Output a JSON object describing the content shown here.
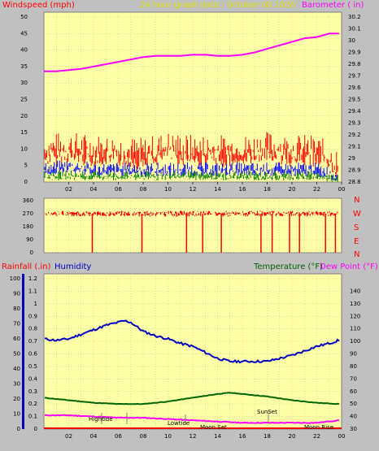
{
  "header_top": {
    "windspeed": "Windspeed (mph)",
    "title": "24 hour graph date : October 08 2020",
    "barometer": "Barometer ( in)"
  },
  "header_bottom": {
    "rainfall": "Rainfall (.in)",
    "humidity": "Humidity",
    "temperature": "Temperature (°F)",
    "dewpoint": "Dew Point (°F)"
  },
  "compass": [
    "N",
    "W",
    "S",
    "E",
    "N"
  ],
  "hour_ticks": [
    "02",
    "04",
    "06",
    "08",
    "10",
    "12",
    "14",
    "16",
    "18",
    "20",
    "22",
    "00"
  ],
  "colors": {
    "plot_bg": "#ffffa8",
    "grid": "#c0c080",
    "wind_gust": "#ff0000",
    "wind_avg": "#0000ff",
    "wind_low": "#008000",
    "barometer": "#ff00ff",
    "direction": "#ff0000",
    "humidity": "#0000c0",
    "temperature": "#006400",
    "dewpoint": "#ff00ff",
    "rain_axis": "#0000c0",
    "title": "#e0e000"
  },
  "annotations": {
    "hightide": "Hightide",
    "lowtide": "Lowtide",
    "moonset": "Moon Set",
    "sunset": "SunSet",
    "moonrise": "Moon Rise"
  },
  "chart_data": [
    {
      "type": "line",
      "title": "24 hour graph date : October 08 2020",
      "x_unit": "hour",
      "xlim": [
        0,
        24
      ],
      "y_left": {
        "label": "Windspeed (mph)",
        "lim": [
          0,
          50
        ],
        "ticks": [
          0,
          5,
          10,
          15,
          20,
          25,
          30,
          35,
          40,
          45,
          50
        ]
      },
      "y_right": {
        "label": "Barometer ( in)",
        "lim": [
          28.8,
          30.2
        ],
        "ticks": [
          "28.8",
          "28.9",
          "29",
          "29.1",
          "29.2",
          "29.3",
          "29.4",
          "29.5",
          "29.6",
          "29.7",
          "29.8",
          "29.9",
          "30",
          "30.1",
          "30.2"
        ]
      },
      "series": [
        {
          "name": "Barometer (in)",
          "axis": "right",
          "x": [
            0,
            1,
            2,
            3,
            4,
            5,
            6,
            7,
            8,
            9,
            10,
            11,
            12,
            13,
            14,
            15,
            16,
            17,
            18,
            19,
            20,
            21,
            22,
            23,
            23.8
          ],
          "y": [
            29.74,
            29.74,
            29.75,
            29.76,
            29.78,
            29.8,
            29.82,
            29.84,
            29.86,
            29.87,
            29.87,
            29.87,
            29.88,
            29.88,
            29.87,
            29.87,
            29.88,
            29.9,
            29.93,
            29.96,
            29.99,
            30.02,
            30.03,
            30.06,
            30.06
          ]
        },
        {
          "name": "Wind gust (mph)",
          "axis": "left",
          "x": [
            0,
            2,
            4,
            6,
            8,
            10,
            12,
            14,
            16,
            18,
            20,
            22,
            24
          ],
          "y": [
            10,
            11,
            10,
            10,
            9,
            11,
            10,
            10,
            10,
            11,
            10,
            10,
            5
          ]
        },
        {
          "name": "Wind average (mph)",
          "axis": "left",
          "x": [
            0,
            2,
            4,
            6,
            8,
            10,
            12,
            14,
            16,
            18,
            20,
            22,
            24
          ],
          "y": [
            4,
            5,
            4,
            4,
            4,
            4,
            4,
            4,
            4,
            4,
            4,
            4,
            2
          ]
        },
        {
          "name": "Wind low (mph)",
          "axis": "left",
          "x": [
            0,
            2,
            4,
            6,
            8,
            10,
            12,
            14,
            16,
            18,
            20,
            22,
            24
          ],
          "y": [
            2,
            2,
            2,
            2,
            2,
            2,
            2,
            2,
            2,
            2,
            2,
            2,
            1
          ]
        }
      ]
    },
    {
      "type": "scatter",
      "x_unit": "hour",
      "xlim": [
        0,
        24
      ],
      "y_left": {
        "lim": [
          0,
          360
        ],
        "ticks": [
          0,
          90,
          180,
          270,
          360
        ]
      },
      "y_right_labels": [
        "N",
        "W",
        "S",
        "E",
        "N"
      ],
      "series": [
        {
          "name": "Wind direction (degrees)",
          "typical_value": 270,
          "drops_to_zero_at": [
            3.9,
            7.9,
            11.5,
            12.8,
            14.3,
            17.5,
            18.4,
            19.8,
            20.6,
            22.7,
            23.5
          ]
        }
      ]
    },
    {
      "type": "line",
      "x_unit": "hour",
      "xlim": [
        0,
        24
      ],
      "y_left_outer": {
        "label": "Rainfall (.in)",
        "lim": [
          0,
          1.2
        ],
        "ticks": [
          "0",
          "0.1",
          "0.2",
          "0.3",
          "0.4",
          "0.5",
          "0.6",
          "0.7",
          "0.8",
          "0.9",
          "1",
          "1.1",
          "1.2"
        ]
      },
      "y_left_inner": {
        "label": "Humidity",
        "lim": [
          0,
          100
        ],
        "ticks": [
          0,
          10,
          20,
          30,
          40,
          50,
          60,
          70,
          80,
          90,
          100
        ]
      },
      "y_right": {
        "label": "Temperature (°F)",
        "lim": [
          30,
          150
        ],
        "ticks": [
          30,
          40,
          50,
          60,
          70,
          80,
          90,
          100,
          110,
          120,
          130,
          140
        ]
      },
      "series": [
        {
          "name": "Humidity",
          "axis": "humidity",
          "x": [
            0,
            1,
            2,
            3,
            4,
            5,
            6,
            6.5,
            7,
            8,
            9,
            10,
            11,
            12,
            13,
            14,
            15,
            16,
            17,
            18,
            19,
            20,
            21,
            22,
            23,
            23.8
          ],
          "y": [
            60,
            59,
            60,
            63,
            66,
            69,
            71,
            72,
            71,
            65,
            62,
            60,
            57,
            55,
            51,
            47,
            45,
            45,
            45,
            45,
            47,
            49,
            52,
            55,
            57,
            59
          ]
        },
        {
          "name": "Temperature (°F)",
          "axis": "right",
          "x": [
            0,
            2,
            4,
            6,
            8,
            10,
            12,
            14,
            15,
            16,
            18,
            20,
            22,
            23.8
          ],
          "y": [
            55,
            53,
            51,
            50,
            50,
            52,
            55,
            58,
            59,
            58,
            56,
            53,
            51,
            50
          ]
        },
        {
          "name": "Dew Point (°F)",
          "axis": "right",
          "x": [
            0,
            2,
            4,
            6,
            8,
            10,
            12,
            14,
            16,
            18,
            20,
            22,
            23.8
          ],
          "y": [
            41,
            41,
            40,
            39,
            39,
            38,
            37,
            36,
            35,
            35,
            35,
            35,
            37
          ]
        },
        {
          "name": "Rainfall (.in)",
          "axis": "rain",
          "x": [
            0,
            23.8
          ],
          "y": [
            0,
            0
          ]
        }
      ],
      "markers": [
        {
          "label": "Hightide",
          "x": 6.3
        },
        {
          "label": "Lowtide",
          "x": 11.3
        },
        {
          "label": "Moon Set",
          "x": 14.3
        },
        {
          "label": "SunSet",
          "x": 18.5
        },
        {
          "label": "Moon Rise",
          "x": 22.5
        }
      ]
    }
  ]
}
